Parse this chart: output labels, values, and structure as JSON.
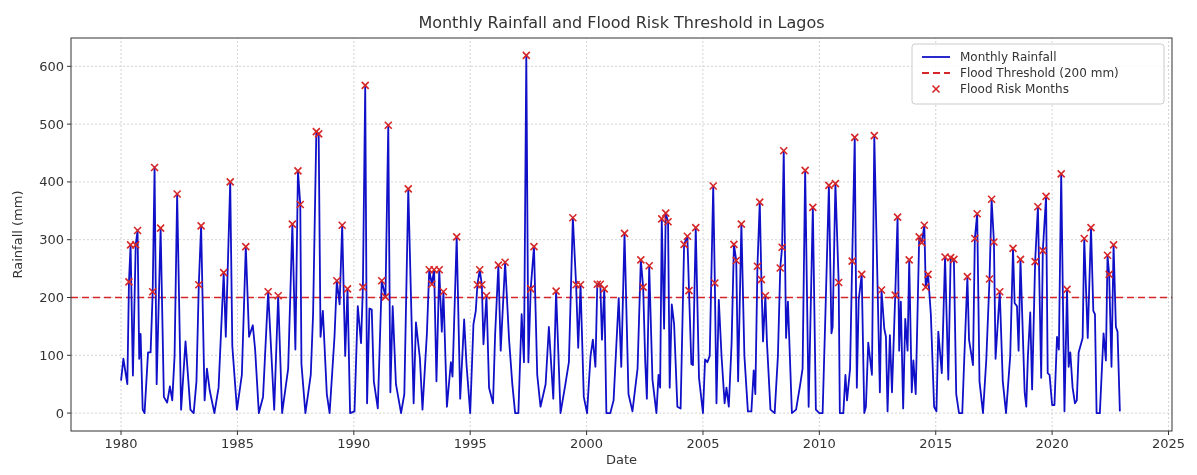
{
  "chart_data": {
    "type": "line",
    "title": "Monthly Rainfall and Flood Risk Threshold in Lagos",
    "xlabel": "Date",
    "ylabel": "Rainfall (mm)",
    "xlim": [
      1977.85,
      2025.15
    ],
    "ylim": [
      -31,
      649
    ],
    "xticks": [
      1980,
      1985,
      1990,
      1995,
      2000,
      2005,
      2010,
      2015,
      2020,
      2025
    ],
    "yticks": [
      0,
      100,
      200,
      300,
      400,
      500,
      600
    ],
    "grid": true,
    "legend": "top right",
    "ref_lines": [
      {
        "axis": "y",
        "value": 200,
        "label": "Flood Threshold (200 mm)",
        "color": "#d62728",
        "line_style": "dashed"
      }
    ],
    "series": [
      {
        "name": "Monthly Rainfall",
        "color": "#1010c8",
        "marker": "none",
        "line_style": "solid",
        "x": [
          1980.0,
          1980.1,
          1980.27,
          1980.34,
          1980.41,
          1980.51,
          1980.63,
          1980.71,
          1980.78,
          1980.84,
          1980.93,
          1981.01,
          1981.16,
          1981.27,
          1981.36,
          1981.44,
          1981.53,
          1981.7,
          1981.84,
          1981.98,
          1982.1,
          1982.2,
          1982.3,
          1982.41,
          1982.58,
          1982.77,
          1982.98,
          1983.12,
          1983.24,
          1983.34,
          1983.44,
          1983.59,
          1983.69,
          1983.81,
          1984.01,
          1984.19,
          1984.41,
          1984.5,
          1984.69,
          1984.78,
          1984.98,
          1985.19,
          1985.36,
          1985.5,
          1985.66,
          1985.76,
          1985.92,
          1986.1,
          1986.32,
          1986.58,
          1986.75,
          1986.92,
          1987.18,
          1987.36,
          1987.49,
          1987.6,
          1987.7,
          1987.75,
          1987.92,
          1988.15,
          1988.25,
          1988.39,
          1988.49,
          1988.57,
          1988.67,
          1988.84,
          1988.96,
          1989.17,
          1989.27,
          1989.39,
          1989.5,
          1989.63,
          1989.73,
          1989.84,
          1990.03,
          1990.17,
          1990.31,
          1990.39,
          1990.49,
          1990.57,
          1990.67,
          1990.77,
          1990.86,
          1991.03,
          1991.2,
          1991.36,
          1991.48,
          1991.57,
          1991.67,
          1991.81,
          1992.03,
          1992.17,
          1992.34,
          1992.57,
          1992.67,
          1992.84,
          1992.95,
          1993.14,
          1993.24,
          1993.35,
          1993.45,
          1993.55,
          1993.67,
          1993.78,
          1993.85,
          1994.0,
          1994.17,
          1994.24,
          1994.42,
          1994.57,
          1994.74,
          1994.84,
          1995.0,
          1995.14,
          1995.24,
          1995.31,
          1995.41,
          1995.5,
          1995.57,
          1995.7,
          1995.81,
          1995.98,
          1996.07,
          1996.21,
          1996.31,
          1996.5,
          1996.67,
          1996.81,
          1996.93,
          1997.07,
          1997.21,
          1997.31,
          1997.41,
          1997.5,
          1997.6,
          1997.74,
          1997.88,
          1998.02,
          1998.24,
          1998.38,
          1998.57,
          1998.69,
          1998.88,
          1999.09,
          1999.24,
          1999.41,
          1999.55,
          1999.64,
          1999.74,
          1999.88,
          2000.02,
          2000.17,
          2000.27,
          2000.38,
          2000.46,
          2000.59,
          2000.66,
          2000.76,
          2000.85,
          2001.02,
          2001.16,
          2001.38,
          2001.49,
          2001.63,
          2001.8,
          2001.97,
          2002.19,
          2002.33,
          2002.43,
          2002.52,
          2002.59,
          2002.69,
          2002.83,
          2003.0,
          2003.09,
          2003.16,
          2003.23,
          2003.33,
          2003.4,
          2003.5,
          2003.57,
          2003.66,
          2003.76,
          2003.9,
          2004.04,
          2004.19,
          2004.33,
          2004.4,
          2004.5,
          2004.57,
          2004.69,
          2004.83,
          2005.0,
          2005.09,
          2005.19,
          2005.29,
          2005.44,
          2005.51,
          2005.58,
          2005.68,
          2005.8,
          2005.93,
          2006.01,
          2006.11,
          2006.23,
          2006.33,
          2006.43,
          2006.51,
          2006.65,
          2006.78,
          2006.93,
          2007.08,
          2007.18,
          2007.25,
          2007.34,
          2007.44,
          2007.51,
          2007.58,
          2007.68,
          2007.75,
          2007.9,
          2008.08,
          2008.22,
          2008.32,
          2008.4,
          2008.47,
          2008.57,
          2008.65,
          2008.82,
          2009.0,
          2009.18,
          2009.28,
          2009.39,
          2009.54,
          2009.72,
          2009.85,
          2010.0,
          2010.14,
          2010.26,
          2010.41,
          2010.52,
          2010.57,
          2010.69,
          2010.83,
          2010.88,
          2011.03,
          2011.12,
          2011.19,
          2011.32,
          2011.41,
          2011.52,
          2011.61,
          2011.69,
          2011.82,
          2011.93,
          2012.0,
          2012.1,
          2012.26,
          2012.36,
          2012.6,
          2012.67,
          2012.79,
          2012.86,
          2012.93,
          2013.03,
          2013.12,
          2013.26,
          2013.36,
          2013.43,
          2013.5,
          2013.6,
          2013.69,
          2013.79,
          2013.86,
          2013.97,
          2014.04,
          2014.14,
          2014.29,
          2014.4,
          2014.51,
          2014.57,
          2014.67,
          2014.79,
          2014.93,
          2015.03,
          2015.11,
          2015.26,
          2015.4,
          2015.54,
          2015.64,
          2015.78,
          2015.88,
          2016.0,
          2016.14,
          2016.21,
          2016.36,
          2016.43,
          2016.6,
          2016.68,
          2016.78,
          2016.88,
          2017.03,
          2017.17,
          2017.31,
          2017.4,
          2017.5,
          2017.57,
          2017.75,
          2017.88,
          2018.02,
          2018.2,
          2018.32,
          2018.39,
          2018.49,
          2018.56,
          2018.64,
          2018.82,
          2018.89,
          2018.96,
          2019.06,
          2019.14,
          2019.27,
          2019.39,
          2019.53,
          2019.6,
          2019.74,
          2019.81,
          2019.89,
          2020.0,
          2020.1,
          2020.21,
          2020.29,
          2020.39,
          2020.53,
          2020.64,
          2020.71,
          2020.78,
          2020.88,
          2020.98,
          2021.06,
          2021.14,
          2021.31,
          2021.38,
          2021.53,
          2021.67,
          2021.77,
          2021.84,
          2021.91,
          2022.05,
          2022.21,
          2022.31,
          2022.38,
          2022.45,
          2022.55,
          2022.64,
          2022.74,
          2022.81,
          2022.91
        ],
        "values": [
          56,
          94,
          50,
          227,
          291,
          65,
          291,
          316,
          94,
          137,
          6,
          0,
          105,
          105,
          210,
          425,
          50,
          320,
          28,
          18,
          46,
          22,
          99,
          379,
          6,
          124,
          6,
          0,
          55,
          222,
          324,
          22,
          77,
          39,
          0,
          44,
          243,
          132,
          400,
          116,
          6,
          66,
          288,
          132,
          152,
          110,
          0,
          28,
          210,
          6,
          203,
          0,
          77,
          327,
          110,
          419,
          361,
          85,
          0,
          66,
          171,
          487,
          483,
          132,
          177,
          33,
          0,
          132,
          229,
          188,
          325,
          99,
          215,
          0,
          3,
          185,
          121,
          218,
          567,
          17,
          181,
          179,
          55,
          8,
          229,
          201,
          498,
          36,
          185,
          50,
          0,
          33,
          388,
          17,
          157,
          94,
          6,
          138,
          248,
          223,
          248,
          55,
          248,
          141,
          210,
          11,
          88,
          63,
          305,
          25,
          162,
          85,
          0,
          154,
          177,
          222,
          248,
          222,
          119,
          203,
          44,
          17,
          135,
          256,
          108,
          261,
          127,
          50,
          0,
          0,
          171,
          88,
          619,
          88,
          215,
          288,
          66,
          11,
          50,
          149,
          25,
          211,
          0,
          50,
          88,
          338,
          222,
          113,
          222,
          28,
          0,
          99,
          127,
          80,
          223,
          223,
          127,
          215,
          0,
          0,
          22,
          199,
          80,
          311,
          33,
          3,
          77,
          265,
          218,
          88,
          25,
          255,
          58,
          0,
          66,
          44,
          336,
          146,
          346,
          331,
          44,
          188,
          154,
          11,
          8,
          292,
          306,
          212,
          85,
          83,
          321,
          61,
          0,
          93,
          88,
          99,
          393,
          225,
          17,
          196,
          97,
          17,
          44,
          11,
          121,
          292,
          264,
          55,
          327,
          99,
          3,
          3,
          74,
          33,
          254,
          365,
          231,
          124,
          203,
          121,
          6,
          0,
          99,
          251,
          287,
          454,
          130,
          193,
          0,
          6,
          50,
          77,
          420,
          11,
          356,
          6,
          0,
          0,
          171,
          394,
          138,
          149,
          397,
          226,
          0,
          0,
          66,
          22,
          77,
          263,
          477,
          44,
          196,
          240,
          0,
          11,
          122,
          66,
          480,
          36,
          213,
          146,
          132,
          3,
          135,
          36,
          204,
          339,
          108,
          193,
          8,
          163,
          108,
          265,
          36,
          91,
          33,
          305,
          295,
          325,
          218,
          240,
          171,
          11,
          3,
          141,
          69,
          270,
          58,
          269,
          266,
          33,
          0,
          0,
          77,
          236,
          127,
          83,
          302,
          345,
          55,
          0,
          91,
          232,
          370,
          296,
          94,
          210,
          55,
          0,
          99,
          285,
          190,
          185,
          108,
          266,
          36,
          11,
          99,
          174,
          41,
          262,
          357,
          61,
          281,
          375,
          69,
          66,
          14,
          14,
          132,
          110,
          414,
          3,
          214,
          80,
          105,
          44,
          17,
          22,
          105,
          130,
          302,
          130,
          321,
          177,
          171,
          0,
          0,
          138,
          91,
          273,
          240,
          80,
          291,
          149,
          141,
          3
        ]
      },
      {
        "name": "Flood Risk Months",
        "type": "scatter",
        "color": "#d62728",
        "marker": "cross",
        "x": [
          1980.34,
          1980.41,
          1980.63,
          1980.71,
          1981.36,
          1981.44,
          1981.7,
          1982.41,
          1983.34,
          1983.44,
          1984.41,
          1984.69,
          1985.36,
          1986.32,
          1986.75,
          1987.36,
          1987.6,
          1987.7,
          1988.39,
          1988.49,
          1989.27,
          1989.5,
          1989.73,
          1990.39,
          1990.49,
          1991.2,
          1991.36,
          1991.48,
          1992.34,
          1993.24,
          1993.35,
          1993.45,
          1993.67,
          1993.85,
          1994.42,
          1995.31,
          1995.41,
          1995.5,
          1995.7,
          1996.21,
          1996.5,
          1997.41,
          1997.6,
          1997.74,
          1998.69,
          1999.41,
          1999.55,
          1999.74,
          2000.46,
          2000.59,
          2000.76,
          2001.63,
          2002.33,
          2002.43,
          2002.69,
          2003.23,
          2003.4,
          2003.5,
          2004.19,
          2004.33,
          2004.4,
          2004.69,
          2005.44,
          2005.51,
          2006.33,
          2006.43,
          2006.65,
          2007.34,
          2007.44,
          2007.51,
          2007.68,
          2008.32,
          2008.4,
          2008.47,
          2009.39,
          2009.72,
          2010.41,
          2010.69,
          2010.83,
          2011.41,
          2011.52,
          2011.82,
          2012.36,
          2012.67,
          2013.26,
          2013.36,
          2013.86,
          2014.29,
          2014.4,
          2014.51,
          2014.57,
          2014.67,
          2015.4,
          2015.64,
          2015.78,
          2016.36,
          2016.68,
          2016.78,
          2017.31,
          2017.4,
          2017.5,
          2017.75,
          2018.32,
          2018.64,
          2019.27,
          2019.39,
          2019.6,
          2019.74,
          2020.39,
          2020.64,
          2021.38,
          2021.67,
          2022.38,
          2022.45,
          2022.64
        ],
        "values": [
          227,
          291,
          291,
          316,
          210,
          425,
          320,
          379,
          222,
          324,
          243,
          400,
          288,
          210,
          203,
          327,
          419,
          361,
          487,
          483,
          229,
          325,
          215,
          218,
          567,
          229,
          201,
          498,
          388,
          248,
          223,
          248,
          248,
          210,
          305,
          222,
          248,
          222,
          203,
          256,
          261,
          619,
          215,
          288,
          211,
          338,
          222,
          222,
          223,
          223,
          215,
          311,
          265,
          218,
          255,
          336,
          346,
          331,
          292,
          306,
          212,
          321,
          393,
          225,
          292,
          264,
          327,
          254,
          365,
          231,
          203,
          251,
          287,
          454,
          420,
          356,
          394,
          397,
          226,
          263,
          477,
          240,
          480,
          213,
          204,
          339,
          265,
          305,
          295,
          325,
          218,
          240,
          270,
          269,
          266,
          236,
          302,
          345,
          232,
          370,
          296,
          210,
          285,
          266,
          262,
          357,
          281,
          375,
          414,
          214,
          302,
          321,
          273,
          240,
          291
        ]
      }
    ]
  }
}
